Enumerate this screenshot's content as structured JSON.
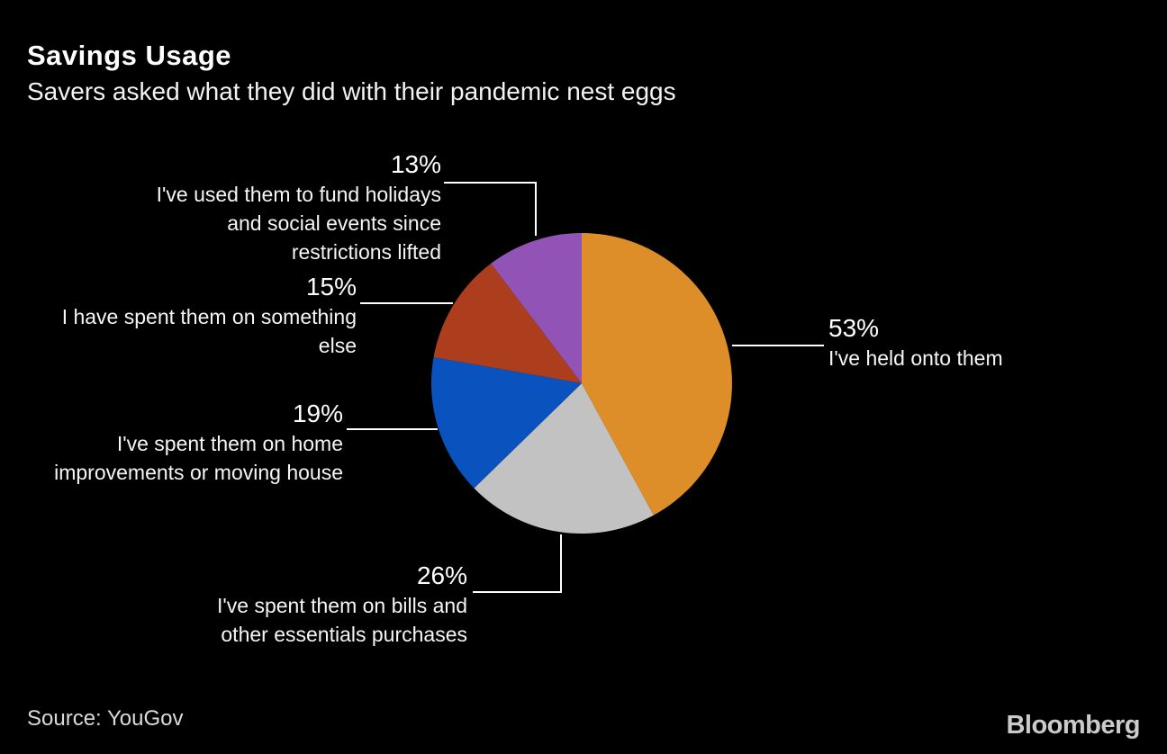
{
  "chart_data": {
    "type": "pie",
    "title": "Savings Usage",
    "subtitle": "Savers asked what they did with their pandemic nest eggs",
    "source": "Source: YouGov",
    "brand": "Bloomberg",
    "layout_hints": {
      "background": "#000000",
      "start_angle": "top",
      "direction": "clockwise",
      "legend": "none",
      "labels": "outside with leader lines"
    },
    "slices": [
      {
        "label": "I've held onto them",
        "pct_label": "53%",
        "value": 53,
        "color": "#DE8E28"
      },
      {
        "label": "I've spent them on bills and other essentials purchases",
        "pct_label": "26%",
        "value": 26,
        "color": "#C2C2C3"
      },
      {
        "label": "I've spent them on home improvements or moving house",
        "pct_label": "19%",
        "value": 19,
        "color": "#0A52BE"
      },
      {
        "label": "I have spent them on something else",
        "pct_label": "15%",
        "value": 15,
        "color": "#AC3E1E"
      },
      {
        "label": "I've used them to fund holidays and social events since restrictions lifted",
        "pct_label": "13%",
        "value": 13,
        "color": "#9154B6"
      }
    ]
  },
  "display_labels": {
    "l53": {
      "text": "I've held onto them"
    },
    "l26": {
      "text": "I've spent them on bills and\nother essentials purchases"
    },
    "l19": {
      "text": "I've spent them on home\nimprovements or moving house"
    },
    "l15": {
      "text": "I have spent them on something\nelse"
    },
    "l13": {
      "text": "I've used them to fund holidays\nand social events since\nrestrictions lifted"
    }
  }
}
